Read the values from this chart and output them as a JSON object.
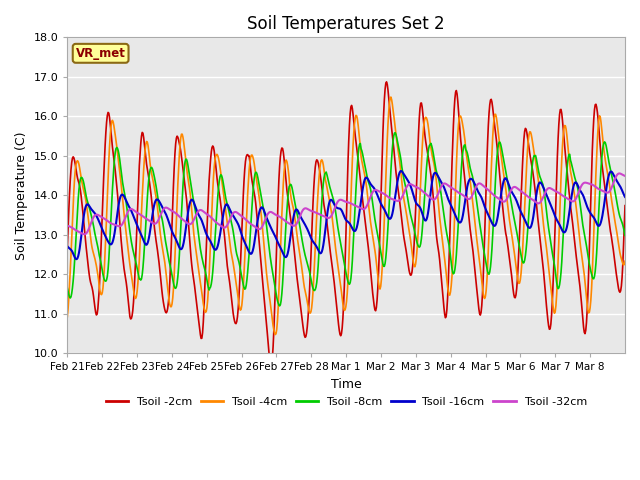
{
  "title": "Soil Temperatures Set 2",
  "xlabel": "Time",
  "ylabel": "Soil Temperature (C)",
  "ylim": [
    10.0,
    18.0
  ],
  "yticks": [
    10.0,
    11.0,
    12.0,
    13.0,
    14.0,
    15.0,
    16.0,
    17.0,
    18.0
  ],
  "xtick_labels": [
    "Feb 21",
    "Feb 22",
    "Feb 23",
    "Feb 24",
    "Feb 25",
    "Feb 26",
    "Feb 27",
    "Feb 28",
    "Mar 1",
    "Mar 2",
    "Mar 3",
    "Mar 4",
    "Mar 5",
    "Mar 6",
    "Mar 7",
    "Mar 8"
  ],
  "series_colors": [
    "#cc0000",
    "#ff8800",
    "#00cc00",
    "#0000cc",
    "#cc44cc"
  ],
  "series_labels": [
    "Tsoil -2cm",
    "Tsoil -4cm",
    "Tsoil -8cm",
    "Tsoil -16cm",
    "Tsoil -32cm"
  ],
  "line_widths": [
    1.2,
    1.2,
    1.2,
    1.5,
    1.5
  ],
  "annotation_text": "VR_met",
  "bg_color": "#e8e8e8",
  "plot_bg_color": "#e8e8e8",
  "grid_color": "#ffffff",
  "total_days": 16,
  "samples_per_day": 48
}
